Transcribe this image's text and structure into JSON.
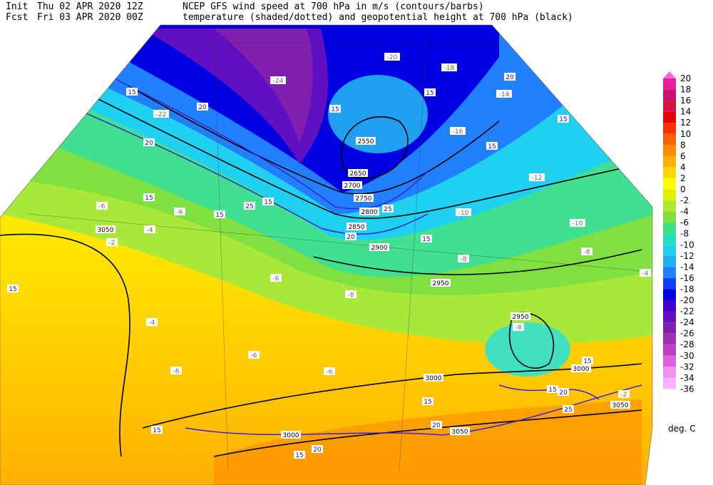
{
  "header": {
    "init_label": "Init",
    "init_time": "Thu 02 APR 2020 12Z",
    "fcst_label": "Fcst",
    "fcst_time": "Fri 03 APR 2020 00Z",
    "title_line1": "NCEP GFS wind speed at 700 hPa in m/s (contours/barbs)",
    "title_line2": "temperature (shaded/dotted) and geopotential height at 700 hPa (black)"
  },
  "colorbar": {
    "unit": "deg. C",
    "levels": [
      {
        "value": 20,
        "color": "#ff66cc"
      },
      {
        "value": 18,
        "color": "#e8209a"
      },
      {
        "value": 16,
        "color": "#c81070"
      },
      {
        "value": 14,
        "color": "#d81040"
      },
      {
        "value": 12,
        "color": "#e80000"
      },
      {
        "value": 10,
        "color": "#ff3000"
      },
      {
        "value": 8,
        "color": "#ff6000"
      },
      {
        "value": 6,
        "color": "#ff8c00"
      },
      {
        "value": 4,
        "color": "#ffb000"
      },
      {
        "value": 2,
        "color": "#ffd800"
      },
      {
        "value": 0,
        "color": "#ffff00"
      },
      {
        "value": -2,
        "color": "#e0f000"
      },
      {
        "value": -4,
        "color": "#b0e830"
      },
      {
        "value": -6,
        "color": "#80e040"
      },
      {
        "value": -8,
        "color": "#40e080"
      },
      {
        "value": -10,
        "color": "#20e0c0"
      },
      {
        "value": -12,
        "color": "#20d0f0"
      },
      {
        "value": -14,
        "color": "#20b0f0"
      },
      {
        "value": -16,
        "color": "#2080ff"
      },
      {
        "value": -18,
        "color": "#1040ff"
      },
      {
        "value": -20,
        "color": "#0000e0"
      },
      {
        "value": -22,
        "color": "#4000d0"
      },
      {
        "value": -24,
        "color": "#6010c0"
      },
      {
        "value": -26,
        "color": "#8020b0"
      },
      {
        "value": -28,
        "color": "#a030b0"
      },
      {
        "value": -30,
        "color": "#c040c0"
      },
      {
        "value": -32,
        "color": "#e060e0"
      },
      {
        "value": -34,
        "color": "#f090f0"
      },
      {
        "value": -36,
        "color": "#ffb0ff"
      }
    ]
  },
  "map_labels": {
    "heights": [
      "3050",
      "2950",
      "2950",
      "2900",
      "2850",
      "2800",
      "2750",
      "2700",
      "2650",
      "2550",
      "3000",
      "3000",
      "3050",
      "3050",
      "3000"
    ],
    "wind": [
      "15",
      "20",
      "20",
      "15",
      "15",
      "25",
      "15",
      "15",
      "20",
      "15",
      "15",
      "15",
      "15",
      "20",
      "25",
      "15",
      "15",
      "20",
      "15",
      "25",
      "20",
      "15",
      "15",
      "20",
      "15"
    ],
    "temperature": [
      "-6",
      "-4",
      "-6",
      "-2",
      "-6",
      "-6",
      "-6",
      "-4",
      "-6",
      "-8",
      "-8",
      "-8",
      "-10",
      "-10",
      "-12",
      "-8",
      "-4",
      "-2",
      "-20",
      "-24",
      "-22",
      "-18",
      "-14",
      "-16"
    ]
  }
}
